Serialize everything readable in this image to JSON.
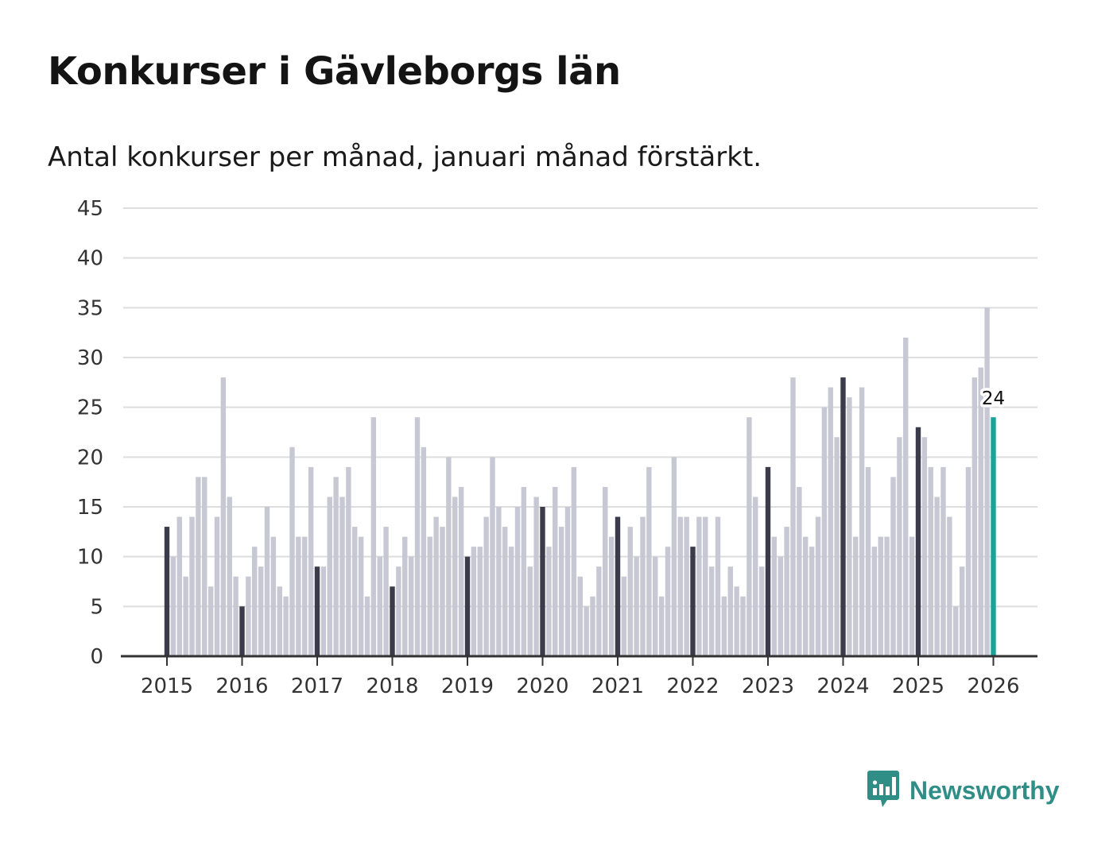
{
  "chart_data": {
    "type": "bar",
    "title": "Konkurser i Gävleborgs län",
    "subtitle": "Antal konkurser per månad, januari månad förstärkt.",
    "xlabel": "",
    "ylabel": "",
    "ylim": [
      0,
      45
    ],
    "yticks": [
      0,
      5,
      10,
      15,
      20,
      25,
      30,
      35,
      40,
      45
    ],
    "years": [
      "2015",
      "2016",
      "2017",
      "2018",
      "2019",
      "2020",
      "2021",
      "2022",
      "2023",
      "2024",
      "2025",
      "2026"
    ],
    "first_period": "2015-01",
    "last_value_label": "24",
    "grid": true,
    "values": [
      13,
      10,
      14,
      8,
      14,
      18,
      18,
      7,
      14,
      28,
      16,
      8,
      5,
      8,
      11,
      9,
      15,
      12,
      7,
      6,
      21,
      12,
      12,
      19,
      9,
      9,
      16,
      18,
      16,
      19,
      13,
      12,
      6,
      24,
      10,
      13,
      7,
      9,
      12,
      10,
      24,
      21,
      12,
      14,
      13,
      20,
      16,
      17,
      10,
      11,
      11,
      14,
      20,
      15,
      13,
      11,
      15,
      17,
      9,
      16,
      15,
      11,
      17,
      13,
      15,
      19,
      8,
      5,
      6,
      9,
      17,
      12,
      14,
      8,
      13,
      10,
      14,
      19,
      10,
      6,
      11,
      20,
      14,
      14,
      11,
      14,
      14,
      9,
      14,
      6,
      9,
      7,
      6,
      24,
      16,
      9,
      19,
      12,
      10,
      13,
      28,
      17,
      12,
      11,
      14,
      25,
      27,
      22,
      28,
      26,
      12,
      27,
      19,
      11,
      12,
      12,
      18,
      22,
      32,
      12,
      23,
      22,
      19,
      16,
      19,
      14,
      5,
      9,
      19,
      28,
      29,
      35,
      24
    ],
    "colors": {
      "january": "#3b3b4b",
      "other": "#c8c8d4",
      "latest": "#17a59b",
      "grid": "#dddddd",
      "axis": "#333333"
    }
  },
  "brand": {
    "name": "Newsworthy",
    "logo_icon": "newsworthy-logo-icon"
  }
}
